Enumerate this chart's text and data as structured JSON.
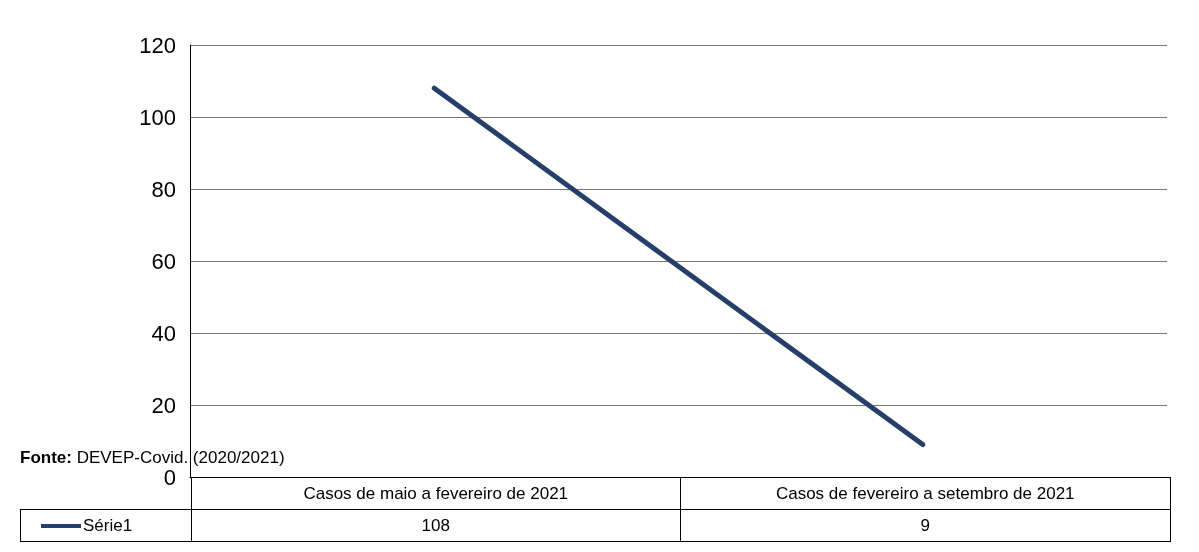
{
  "chart_data": {
    "type": "line",
    "categories": [
      "Casos de maio a fevereiro de 2021",
      "Casos de fevereiro a setembro de 2021"
    ],
    "series": [
      {
        "name": "Série1",
        "color": "#253f6a",
        "values": [
          108,
          9
        ]
      }
    ],
    "ylim": [
      0,
      120
    ],
    "yticks": [
      0,
      20,
      40,
      60,
      80,
      100,
      120
    ],
    "grid": "y",
    "legend": "bottom",
    "marker": "none",
    "line_style": "solid",
    "data_labels": true,
    "annotations": [
      "Fonte: DEVEP-Covid. (2020/2021)"
    ]
  }
}
